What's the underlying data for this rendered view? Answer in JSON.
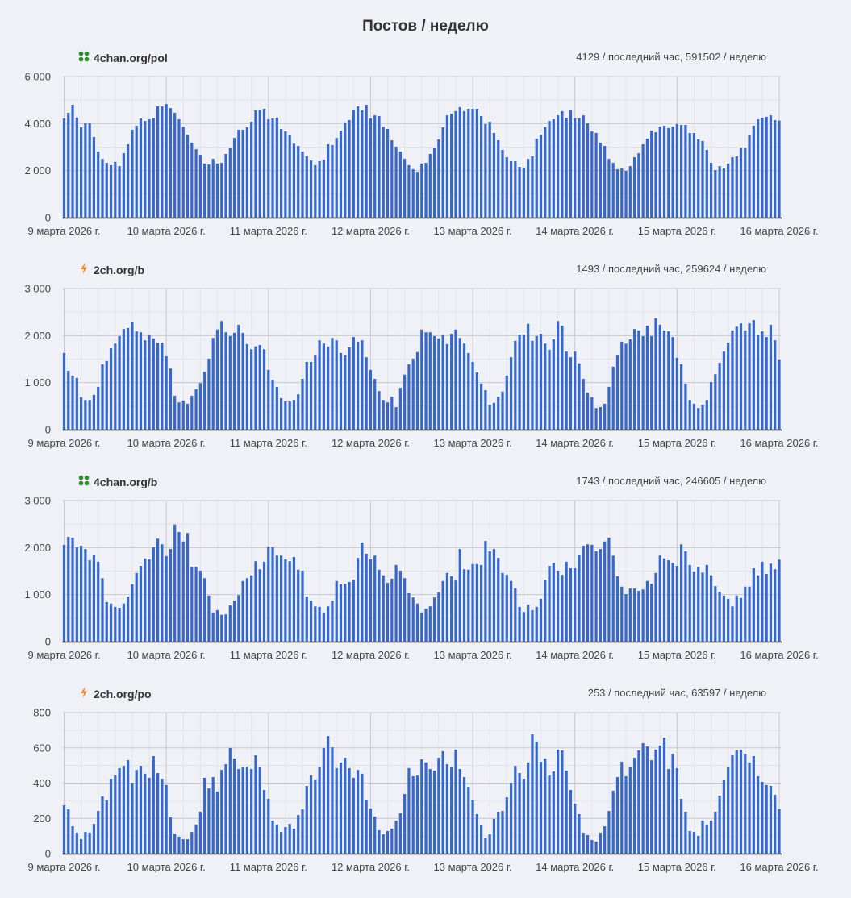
{
  "title": "Постов / неделю",
  "chart_data": [
    {
      "type": "bar",
      "board": "4chan.org/pol",
      "icon": "clover-icon",
      "stats": "4129 / последний час, 591502 / неделю",
      "ylim": [
        0,
        6000
      ],
      "yticks": [
        "0",
        "2 000",
        "4 000",
        "6 000"
      ],
      "ytick_values": [
        0,
        2000,
        4000,
        6000
      ],
      "xticks": [
        "9 марта 2026 г.",
        "10 марта 2026 г.",
        "11 марта 2026 г.",
        "12 марта 2026 г.",
        "13 марта 2026 г.",
        "14 марта 2026 г.",
        "15 марта 2026 г.",
        "16 марта 2026 г."
      ],
      "values": [
        4220,
        4460,
        4800,
        4250,
        3840,
        4010,
        4010,
        3430,
        2810,
        2500,
        2330,
        2230,
        2370,
        2190,
        2740,
        3120,
        3740,
        3910,
        4220,
        4110,
        4180,
        4250,
        4730,
        4730,
        4830,
        4660,
        4460,
        4180,
        3870,
        3530,
        3190,
        2910,
        2670,
        2300,
        2260,
        2500,
        2300,
        2330,
        2710,
        2950,
        3390,
        3740,
        3740,
        3840,
        4080,
        4560,
        4590,
        4630,
        4180,
        4220,
        4250,
        3770,
        3670,
        3500,
        3150,
        3050,
        2810,
        2610,
        2430,
        2230,
        2400,
        2470,
        3120,
        3090,
        3390,
        3700,
        4050,
        4150,
        4590,
        4730,
        4560,
        4800,
        4220,
        4350,
        4320,
        3870,
        3770,
        3290,
        3020,
        2810,
        2500,
        2230,
        2060,
        1950,
        2300,
        2330,
        2710,
        2950,
        3330,
        3840,
        4350,
        4420,
        4530,
        4700,
        4530,
        4630,
        4630,
        4630,
        4320,
        3980,
        4080,
        3600,
        3290,
        2880,
        2570,
        2400,
        2400,
        2160,
        2130,
        2500,
        2610,
        3360,
        3530,
        3840,
        4110,
        4180,
        4350,
        4530,
        4250,
        4590,
        4220,
        4220,
        4350,
        4010,
        3670,
        3600,
        3190,
        3050,
        2500,
        2330,
        2060,
        2090,
        1990,
        2190,
        2570,
        2740,
        3120,
        3360,
        3700,
        3630,
        3870,
        3910,
        3810,
        3870,
        3980,
        3940,
        3940,
        3600,
        3600,
        3330,
        3260,
        2880,
        2330,
        2020,
        2190,
        2090,
        2300,
        2570,
        2610,
        2980,
        2980,
        3500,
        3910,
        4180,
        4250,
        4290,
        4350,
        4150,
        4129
      ]
    },
    {
      "type": "bar",
      "board": "2ch.org/b",
      "icon": "lightning-icon",
      "stats": "1493 / последний час, 259624 / неделю",
      "ylim": [
        0,
        3000
      ],
      "yticks": [
        "0",
        "1 000",
        "2 000",
        "3 000"
      ],
      "ytick_values": [
        0,
        1000,
        2000,
        3000
      ],
      "xticks": [
        "9 марта 2026 г.",
        "10 марта 2026 г.",
        "11 марта 2026 г.",
        "12 марта 2026 г.",
        "13 марта 2026 г.",
        "14 марта 2026 г.",
        "15 марта 2026 г.",
        "16 марта 2026 г."
      ],
      "values": [
        1630,
        1250,
        1150,
        1100,
        690,
        630,
        630,
        740,
        910,
        1390,
        1460,
        1730,
        1830,
        1990,
        2140,
        2160,
        2280,
        2090,
        2070,
        1900,
        2010,
        1940,
        1850,
        1850,
        1560,
        1300,
        720,
        580,
        620,
        550,
        720,
        860,
        990,
        1230,
        1510,
        1950,
        2130,
        2310,
        2070,
        1990,
        2060,
        2230,
        2060,
        1820,
        1710,
        1770,
        1800,
        1710,
        1270,
        1060,
        910,
        670,
        600,
        600,
        630,
        750,
        1080,
        1440,
        1440,
        1590,
        1900,
        1830,
        1770,
        1950,
        1900,
        1630,
        1580,
        1750,
        1970,
        1870,
        1900,
        1540,
        1270,
        1080,
        820,
        630,
        580,
        700,
        480,
        890,
        1170,
        1390,
        1510,
        1650,
        2130,
        2070,
        2070,
        1990,
        1940,
        2010,
        1820,
        2040,
        2130,
        1950,
        1830,
        1630,
        1440,
        1220,
        980,
        840,
        530,
        570,
        700,
        810,
        1150,
        1540,
        1890,
        2020,
        2020,
        2250,
        1890,
        1990,
        2040,
        1830,
        1700,
        1920,
        2310,
        2210,
        1660,
        1540,
        1660,
        1410,
        1080,
        790,
        690,
        460,
        480,
        550,
        910,
        1340,
        1590,
        1870,
        1830,
        1920,
        2140,
        2110,
        1990,
        2210,
        1990,
        2370,
        2230,
        2110,
        2090,
        1970,
        1530,
        1390,
        980,
        630,
        550,
        460,
        530,
        630,
        1010,
        1180,
        1420,
        1660,
        1850,
        2110,
        2190,
        2260,
        2110,
        2260,
        2330,
        2010,
        2090,
        1970,
        2230,
        1900,
        1493
      ]
    },
    {
      "type": "bar",
      "board": "4chan.org/b",
      "icon": "clover-icon",
      "stats": "1743 / последний час, 246605 / неделю",
      "ylim": [
        0,
        3000
      ],
      "yticks": [
        "0",
        "1 000",
        "2 000",
        "3 000"
      ],
      "ytick_values": [
        0,
        1000,
        2000,
        3000
      ],
      "xticks": [
        "9 марта 2026 г.",
        "10 марта 2026 г.",
        "11 марта 2026 г.",
        "12 марта 2026 г.",
        "13 марта 2026 г.",
        "14 марта 2026 г.",
        "15 марта 2026 г.",
        "16 марта 2026 г."
      ],
      "values": [
        2060,
        2230,
        2210,
        2010,
        2040,
        1970,
        1730,
        1850,
        1700,
        1350,
        840,
        810,
        740,
        720,
        810,
        960,
        1220,
        1460,
        1610,
        1770,
        1750,
        2010,
        2190,
        2070,
        1820,
        1970,
        2490,
        2330,
        2130,
        2310,
        1590,
        1590,
        1510,
        1350,
        980,
        620,
        670,
        570,
        580,
        770,
        870,
        990,
        1290,
        1350,
        1410,
        1710,
        1540,
        1700,
        2020,
        2010,
        1830,
        1830,
        1750,
        1710,
        1800,
        1530,
        1510,
        960,
        870,
        750,
        740,
        620,
        750,
        870,
        1290,
        1220,
        1230,
        1270,
        1320,
        1780,
        2110,
        1870,
        1750,
        1830,
        1530,
        1410,
        1250,
        1340,
        1630,
        1510,
        1350,
        1030,
        940,
        810,
        620,
        700,
        750,
        940,
        1050,
        1290,
        1460,
        1390,
        1300,
        1970,
        1540,
        1530,
        1650,
        1650,
        1630,
        2140,
        1920,
        1970,
        1780,
        1460,
        1420,
        1290,
        1130,
        740,
        630,
        790,
        670,
        740,
        910,
        1320,
        1610,
        1680,
        1510,
        1420,
        1700,
        1560,
        1560,
        1850,
        2040,
        2070,
        2060,
        1920,
        1970,
        2130,
        2210,
        1830,
        1390,
        1170,
        1010,
        1130,
        1130,
        1080,
        1110,
        1290,
        1230,
        1460,
        1830,
        1770,
        1730,
        1680,
        1610,
        2070,
        1920,
        1630,
        1490,
        1590,
        1470,
        1630,
        1410,
        1180,
        1060,
        980,
        910,
        750,
        980,
        930,
        1170,
        1170,
        1560,
        1410,
        1700,
        1440,
        1660,
        1540,
        1743
      ]
    },
    {
      "type": "bar",
      "board": "2ch.org/po",
      "icon": "lightning-icon",
      "stats": "253 / последний час, 63597 / неделю",
      "ylim": [
        0,
        800
      ],
      "yticks": [
        "0",
        "200",
        "400",
        "600",
        "800"
      ],
      "ytick_values": [
        0,
        200,
        400,
        600,
        800
      ],
      "xticks": [
        "9 марта 2026 г.",
        "10 марта 2026 г.",
        "11 марта 2026 г.",
        "12 марта 2026 г.",
        "13 марта 2026 г.",
        "14 марта 2026 г.",
        "15 марта 2026 г.",
        "16 марта 2026 г."
      ],
      "values": [
        274,
        251,
        155,
        119,
        82,
        123,
        119,
        169,
        242,
        325,
        302,
        425,
        443,
        485,
        498,
        530,
        402,
        475,
        498,
        453,
        430,
        553,
        457,
        425,
        389,
        206,
        114,
        96,
        82,
        82,
        123,
        165,
        238,
        430,
        370,
        434,
        352,
        475,
        507,
        599,
        539,
        480,
        489,
        494,
        480,
        558,
        489,
        361,
        311,
        187,
        165,
        123,
        151,
        169,
        142,
        219,
        251,
        384,
        443,
        421,
        489,
        599,
        667,
        603,
        485,
        517,
        544,
        485,
        430,
        475,
        453,
        306,
        256,
        210,
        133,
        110,
        128,
        142,
        187,
        229,
        338,
        485,
        439,
        443,
        535,
        517,
        480,
        471,
        544,
        581,
        507,
        489,
        590,
        480,
        434,
        379,
        302,
        224,
        160,
        87,
        110,
        197,
        238,
        242,
        320,
        402,
        498,
        457,
        425,
        517,
        677,
        636,
        521,
        539,
        443,
        466,
        590,
        585,
        471,
        361,
        283,
        224,
        119,
        105,
        78,
        69,
        119,
        155,
        242,
        357,
        434,
        521,
        439,
        489,
        544,
        585,
        626,
        608,
        530,
        590,
        613,
        658,
        480,
        567,
        485,
        311,
        238,
        128,
        123,
        101,
        187,
        165,
        187,
        238,
        329,
        416,
        489,
        562,
        585,
        590,
        567,
        517,
        553,
        439,
        407,
        389,
        384,
        334,
        253
      ]
    }
  ],
  "colors": {
    "bar": "#3567cd",
    "grid_major": "#c8c8cc",
    "grid_minor": "#e3e4ea",
    "axis": "#333333",
    "clover": "#2e8b2e",
    "lightning": "#f0892c"
  }
}
